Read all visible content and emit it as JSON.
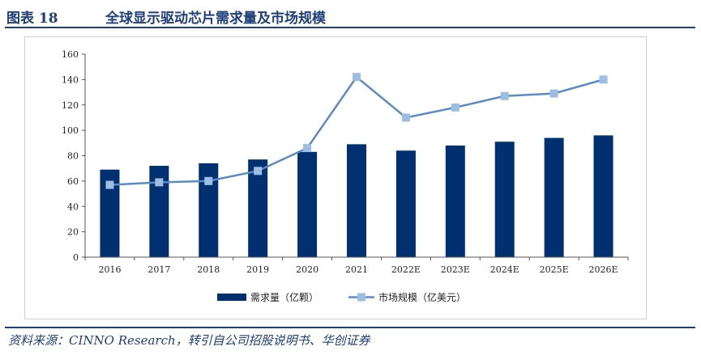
{
  "header": {
    "figure_label": "图表 18",
    "title": "全球显示驱动芯片需求量及市场规模"
  },
  "chart_data": {
    "type": "bar",
    "categories": [
      "2016",
      "2017",
      "2018",
      "2019",
      "2020",
      "2021",
      "2022E",
      "2023E",
      "2024E",
      "2025E",
      "2026E"
    ],
    "series": [
      {
        "name": "需求量（亿颗）",
        "type": "bar",
        "color": "#00306f",
        "values": [
          69,
          72,
          74,
          77,
          83,
          89,
          84,
          88,
          91,
          94,
          96
        ]
      },
      {
        "name": "市场规模（亿美元）",
        "type": "line",
        "color": "#5b8bc4",
        "marker_color": "#9ebde3",
        "values": [
          57,
          59,
          60,
          68,
          86,
          142,
          110,
          118,
          127,
          129,
          140
        ]
      }
    ],
    "yticks": [
      "0",
      "20",
      "40",
      "60",
      "80",
      "100",
      "120",
      "140",
      "160"
    ],
    "ylim": [
      0,
      160
    ],
    "grid": false,
    "legend_position": "bottom"
  },
  "source": "资料来源：CINNO Research，转引自公司招股说明书、华创证券"
}
